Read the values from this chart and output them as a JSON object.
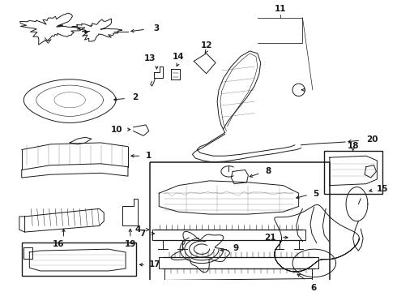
{
  "bg_color": "#ffffff",
  "line_color": "#1a1a1a",
  "fig_width": 4.9,
  "fig_height": 3.6,
  "dpi": 100,
  "font_size": 7.5,
  "lw": 0.7
}
